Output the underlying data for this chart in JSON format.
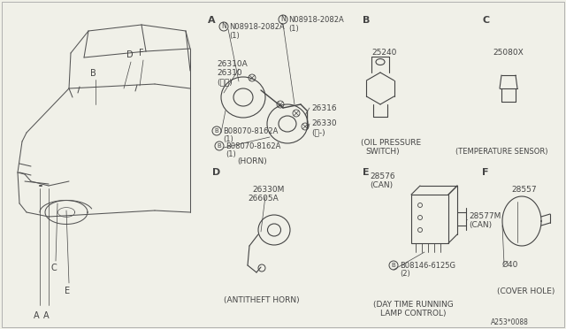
{
  "bg_color": "#f0f0e8",
  "line_color": "#444444",
  "diagram_code": "A253*0088",
  "horn_parts": {
    "n_bolt1": "N08918-2082A",
    "n_bolt2": "N08918-2082A",
    "p_26310A": "26310A",
    "p_26310": "26310",
    "p_hai": "(ハイ)",
    "p_26316": "26316",
    "p_26330": "26330",
    "p_ro": "(ロ-)",
    "b_bolt1": "B08070-8162A",
    "b_bolt2": "B08070-8162A",
    "caption": "(HORN)"
  },
  "oil_switch": {
    "part": "25240",
    "caption1": "(OIL PRESSURE",
    "caption2": "SWITCH)"
  },
  "temp_sensor": {
    "part": "25080X",
    "caption": "(TEMPERATURE SENSOR)"
  },
  "antitheft": {
    "part1": "26330M",
    "part2": "26605A",
    "caption": "(ANTITHEFT HORN)"
  },
  "daytime": {
    "part1": "28576",
    "part1b": "(CAN)",
    "part2": "28577M",
    "part2b": "(CAN)",
    "bolt": "B08146-6125G",
    "bolt2": "(2)",
    "caption1": "(DAY TIME RUNNING",
    "caption2": "LAMP CONTROL)"
  },
  "cover": {
    "part": "28557",
    "dim": "Ø40",
    "caption": "(COVER HOLE)"
  }
}
